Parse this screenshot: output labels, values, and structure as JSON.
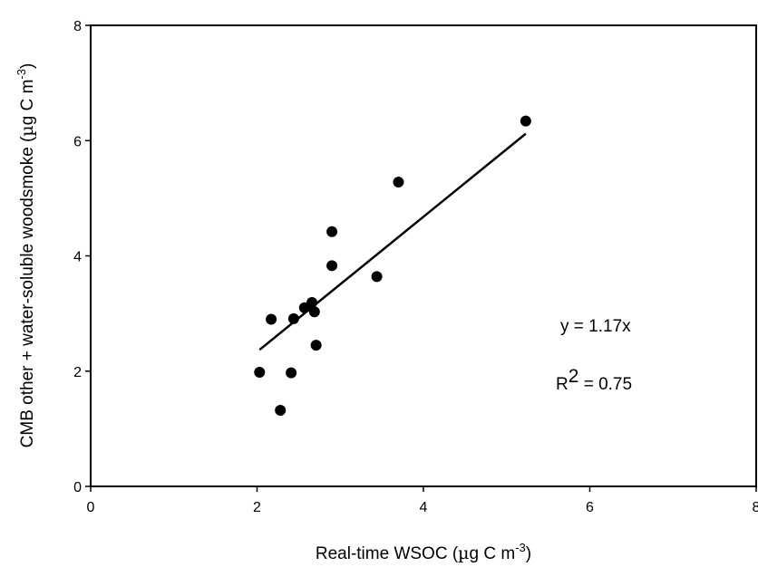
{
  "chart_data": {
    "type": "scatter",
    "xlabel": "Real-time WSOC (µg C m-3)",
    "xlabel_parts": {
      "main": "Real-time WSOC (",
      "mu": "µ",
      "after_mu": "g C m",
      "sup": "-3",
      "close": ")"
    },
    "ylabel": "CMB other + water-soluble woodsmoke (µg C m-3)",
    "ylabel_parts": {
      "main": "CMB other + water-soluble woodsmoke (",
      "mu": "µ",
      "after_mu": "g C m",
      "sup": "-3",
      "close": ")"
    },
    "xlim": [
      0,
      8
    ],
    "ylim": [
      0,
      8
    ],
    "xticks": [
      "0",
      "2",
      "4",
      "6",
      "8"
    ],
    "yticks": [
      "0",
      "2",
      "4",
      "6",
      "8"
    ],
    "grid": false,
    "legend": "none",
    "marker_color": "#000000",
    "line_color": "#000000",
    "points": [
      {
        "x": 2.03,
        "y": 1.98
      },
      {
        "x": 2.17,
        "y": 2.9
      },
      {
        "x": 2.28,
        "y": 1.32
      },
      {
        "x": 2.41,
        "y": 1.97
      },
      {
        "x": 2.44,
        "y": 2.91
      },
      {
        "x": 2.57,
        "y": 3.1
      },
      {
        "x": 2.66,
        "y": 3.19
      },
      {
        "x": 2.69,
        "y": 3.03
      },
      {
        "x": 2.71,
        "y": 2.45
      },
      {
        "x": 2.9,
        "y": 3.83
      },
      {
        "x": 2.9,
        "y": 4.42
      },
      {
        "x": 3.44,
        "y": 3.64
      },
      {
        "x": 3.7,
        "y": 5.28
      },
      {
        "x": 5.23,
        "y": 6.34
      }
    ],
    "fit_line": {
      "x": [
        2.03,
        5.23
      ],
      "y": [
        2.37,
        6.12
      ]
    },
    "annotations": {
      "equation": "y = 1.17x",
      "r2_prefix": "R",
      "r2_sup": "2",
      "r2_value": " = 0.75"
    }
  }
}
